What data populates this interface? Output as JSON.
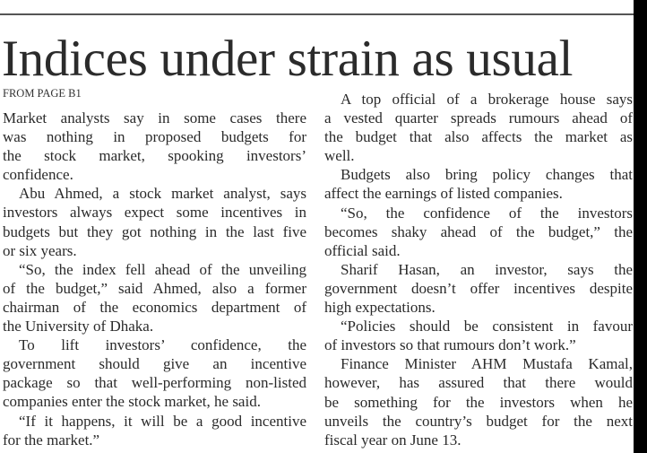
{
  "headline": "Indices under strain as usual",
  "kicker": "FROM PAGE B1",
  "left_column": [
    [
      "Market analysts say in some cases there",
      "was nothing in proposed budgets for",
      "the stock market, spooking investors’",
      "confidence."
    ],
    [
      "Abu Ahmed, a stock market analyst, says",
      "investors always expect some incentives in",
      "budgets but they got nothing in the last five",
      "or six years."
    ],
    [
      "“So, the index fell ahead of the unveiling",
      "of the budget,” said Ahmed, also a former",
      "chairman of the economics department of",
      "the University of Dhaka."
    ],
    [
      "To lift investors’ confidence, the",
      "government should give an incentive",
      "package so that well-performing non-listed",
      "companies enter the stock market, he said."
    ],
    [
      "“If it happens, it will be a good incentive",
      "for the market.”"
    ]
  ],
  "right_column": [
    [
      "A top official of a brokerage house says",
      "a vested quarter spreads rumours ahead of",
      "the budget that also affects the market as",
      "well."
    ],
    [
      "Budgets also bring policy changes that",
      "affect the earnings of listed companies."
    ],
    [
      "“So, the confidence of the investors",
      "becomes shaky ahead of the budget,” the",
      "official said."
    ],
    [
      "Sharif Hasan, an investor, says the",
      "government doesn’t offer incentives despite",
      "high expectations."
    ],
    [
      "“Policies should be consistent in favour",
      "of investors so that rumours don’t work.”"
    ],
    [
      "Finance Minister AHM Mustafa Kamal,",
      "however, has assured that there would",
      "be something for the investors when he",
      "unveils the country’s budget for the next",
      "fiscal year on June 13."
    ]
  ]
}
